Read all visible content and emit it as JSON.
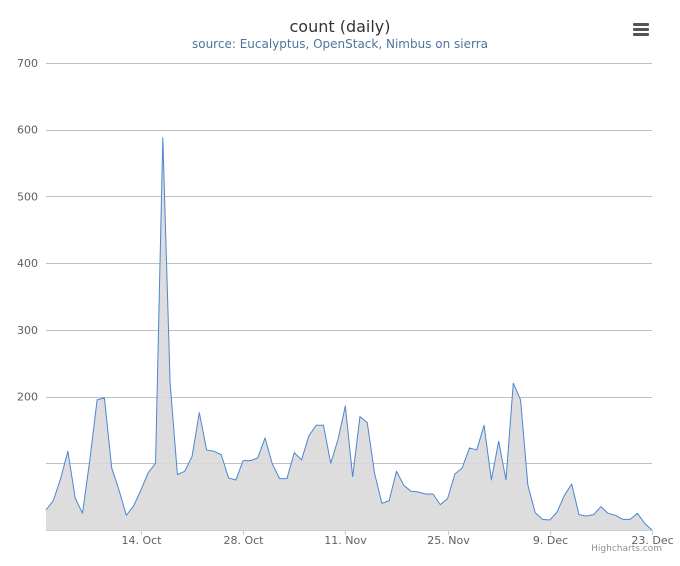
{
  "chart_data": {
    "type": "area",
    "title": "count (daily)",
    "subtitle": "source: Eucalyptus, OpenStack, Nimbus on sierra",
    "ylim": [
      0,
      700
    ],
    "yticks": [
      200,
      300,
      400,
      500,
      600,
      700
    ],
    "x_start": "2013-10-01",
    "x_end": "2013-12-23",
    "xtick_dates": [
      "2013-10-14",
      "2013-10-28",
      "2013-11-11",
      "2013-11-25",
      "2013-12-09",
      "2013-12-23"
    ],
    "xtick_labels": [
      "14. Oct",
      "28. Oct",
      "11. Nov",
      "25. Nov",
      "9. Dec",
      "23. Dec"
    ],
    "grid": true,
    "legend": "none",
    "line_color": "#4a86d4",
    "fill_color": "#d9d9d9",
    "series": [
      {
        "x": [
          "2013-10-01",
          "2013-10-02",
          "2013-10-03",
          "2013-10-04",
          "2013-10-05",
          "2013-10-06",
          "2013-10-07",
          "2013-10-08",
          "2013-10-09",
          "2013-10-10",
          "2013-10-11",
          "2013-10-12",
          "2013-10-13",
          "2013-10-14",
          "2013-10-15",
          "2013-10-16",
          "2013-10-17",
          "2013-10-18",
          "2013-10-19",
          "2013-10-20",
          "2013-10-21",
          "2013-10-22",
          "2013-10-23",
          "2013-10-24",
          "2013-10-25",
          "2013-10-26",
          "2013-10-27",
          "2013-10-28",
          "2013-10-29",
          "2013-10-30",
          "2013-10-31",
          "2013-11-01",
          "2013-11-02",
          "2013-11-03",
          "2013-11-04",
          "2013-11-05",
          "2013-11-06",
          "2013-11-07",
          "2013-11-08",
          "2013-11-09",
          "2013-11-10",
          "2013-11-11",
          "2013-11-12",
          "2013-11-13",
          "2013-11-14",
          "2013-11-15",
          "2013-11-16",
          "2013-11-17",
          "2013-11-18",
          "2013-11-19",
          "2013-11-20",
          "2013-11-21",
          "2013-11-22",
          "2013-11-23",
          "2013-11-24",
          "2013-11-25",
          "2013-11-26",
          "2013-11-27",
          "2013-11-28",
          "2013-11-29",
          "2013-11-30",
          "2013-12-01",
          "2013-12-02",
          "2013-12-03",
          "2013-12-04",
          "2013-12-05",
          "2013-12-06",
          "2013-12-07",
          "2013-12-08",
          "2013-12-09",
          "2013-12-10",
          "2013-12-11",
          "2013-12-12",
          "2013-12-13",
          "2013-12-14",
          "2013-12-15",
          "2013-12-16",
          "2013-12-17",
          "2013-12-18",
          "2013-12-19",
          "2013-12-20",
          "2013-12-21",
          "2013-12-22",
          "2013-12-23"
        ],
        "y": [
          30,
          44,
          77,
          118,
          48,
          25,
          105,
          195,
          198,
          93,
          60,
          22,
          36,
          60,
          86,
          100,
          588,
          220,
          83,
          88,
          110,
          176,
          120,
          118,
          113,
          78,
          75,
          104,
          104,
          108,
          138,
          99,
          77,
          77,
          116,
          105,
          141,
          157,
          157,
          100,
          136,
          186,
          80,
          170,
          161,
          85,
          40,
          44,
          88,
          67,
          58,
          57,
          54,
          54,
          38,
          47,
          84,
          93,
          123,
          120,
          157,
          75,
          133,
          75,
          220,
          195,
          67,
          26,
          16,
          15,
          27,
          52,
          69,
          23,
          21,
          23,
          35,
          25,
          22,
          16,
          16,
          25,
          10,
          0
        ]
      }
    ]
  }
}
